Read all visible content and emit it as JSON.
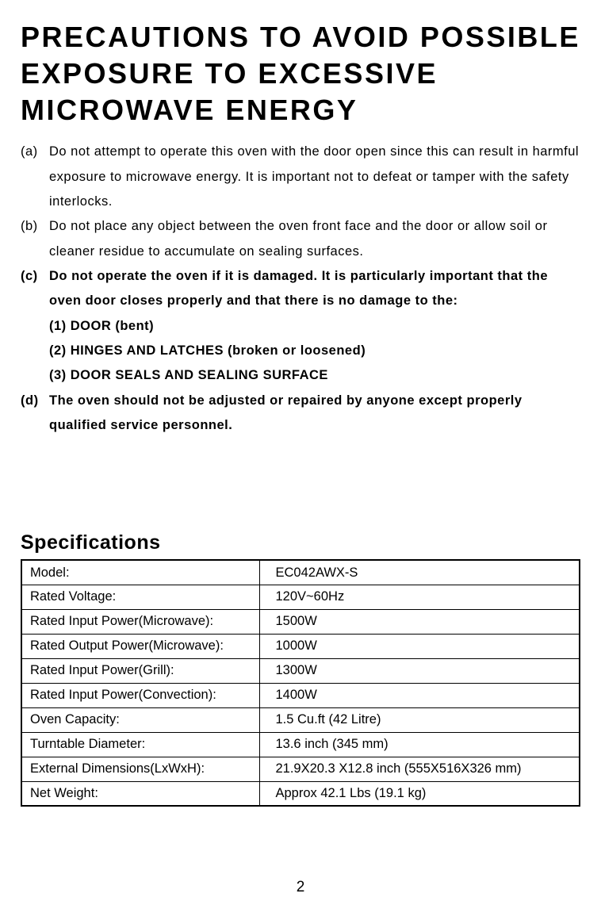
{
  "title": "PRECAUTIONS TO AVOID POSSIBLE EXPOSURE TO EXCESSIVE MICROWAVE ENERGY",
  "precautions": {
    "a_marker": "(a)",
    "a_text": "Do not attempt to operate this oven with the door open since this can result in harmful exposure to microwave energy. It is important not to defeat or tamper with the safety interlocks.",
    "b_marker": "(b)",
    "b_text": "Do not place any object between the oven front face and the door or allow soil or cleaner residue to accumulate on sealing surfaces.",
    "c_marker": "(c)",
    "c_text": "Do not operate the oven if it is damaged. It is particularly important that the oven door closes properly and that there is no damage to the:",
    "c_sub1": "(1) DOOR (bent)",
    "c_sub2": "(2) HINGES AND LATCHES (broken or loosened)",
    "c_sub3": "(3) DOOR SEALS AND SEALING SURFACE",
    "d_marker": "(d)",
    "d_text": "The oven should not be adjusted or repaired by anyone except properly qualified service personnel."
  },
  "spec_title": "Specifications",
  "specs": {
    "rows": [
      {
        "label": "Model:",
        "value": "EC042AWX-S"
      },
      {
        "label": "Rated Voltage:",
        "value": "120V~60Hz"
      },
      {
        "label": "Rated Input Power(Microwave):",
        "value": "1500W"
      },
      {
        "label": "Rated Output Power(Microwave):",
        "value": "1000W"
      },
      {
        "label": "Rated Input Power(Grill):",
        "value": "1300W"
      },
      {
        "label": "Rated Input Power(Convection):",
        "value": "1400W"
      },
      {
        "label": "Oven Capacity:",
        "value": "1.5 Cu.ft (42 Litre)"
      },
      {
        "label": "Turntable Diameter:",
        "value": "13.6 inch (345 mm)"
      },
      {
        "label": "External Dimensions(LxWxH):",
        "value": "21.9X20.3 X12.8 inch (555X516X326 mm)"
      },
      {
        "label": "Net Weight:",
        "value": "Approx 42.1 Lbs (19.1 kg)"
      }
    ],
    "label_col_width": 300,
    "border_color": "#000000",
    "font_size": 16.5
  },
  "page_number": "2",
  "colors": {
    "background": "#ffffff",
    "text": "#000000"
  },
  "typography": {
    "title_fontsize": 36,
    "title_letter_spacing": 2.5,
    "body_fontsize": 16.5,
    "spec_title_fontsize": 25
  }
}
